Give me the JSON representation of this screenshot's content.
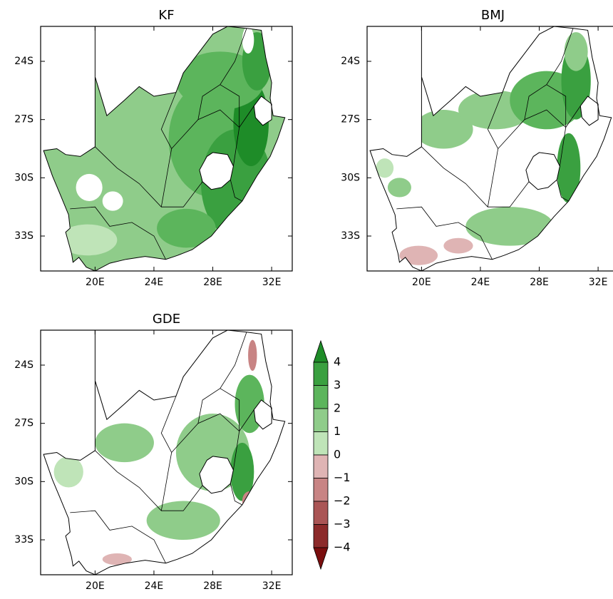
{
  "panels": [
    {
      "title": "KF"
    },
    {
      "title": "BMJ"
    },
    {
      "title": "GDE"
    }
  ],
  "xlim": [
    16.3,
    33.4
  ],
  "ylim": [
    -34.8,
    -22.2
  ],
  "lon_ticks": [
    {
      "value": 20,
      "label": "20E"
    },
    {
      "value": 24,
      "label": "24E"
    },
    {
      "value": 28,
      "label": "28E"
    },
    {
      "value": 32,
      "label": "32E"
    }
  ],
  "lat_ticks": [
    {
      "value": -24,
      "label": "24S"
    },
    {
      "value": -27,
      "label": "27S"
    },
    {
      "value": -30,
      "label": "30S"
    },
    {
      "value": -33,
      "label": "33S"
    }
  ],
  "colorbar": {
    "ticks": [
      4,
      3,
      2,
      1,
      0,
      {
        "value": -1,
        "label": "−1"
      },
      {
        "value": -2,
        "label": "−2"
      },
      {
        "value": -3,
        "label": "−3"
      },
      {
        "value": -4,
        "label": "−4"
      }
    ],
    "colors": [
      "#1e8c28",
      "#3aa040",
      "#5cb55c",
      "#8fcc8a",
      "#bfe4b8",
      "#dfb4b4",
      "#c88484",
      "#aa5555",
      "#8c2a2a",
      "#7a0e0e"
    ]
  }
}
